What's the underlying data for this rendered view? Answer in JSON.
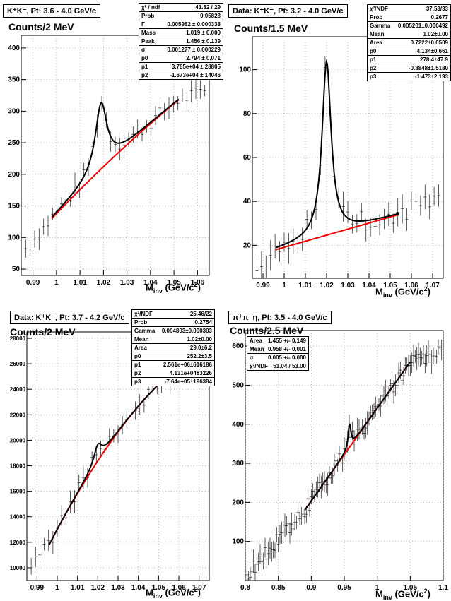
{
  "chart_data": [
    {
      "type": "scatter",
      "title": "K⁺K⁻, Pt: 3.6 - 4.0 GeV/c",
      "ylabel": "Counts/2 MeV",
      "xlabel": "M_inv (GeV/c²)",
      "xlim": [
        0.985,
        1.065
      ],
      "ylim": [
        40,
        420
      ],
      "xticks": [
        "0.99",
        "1",
        "1.01",
        "1.02",
        "1.03",
        "1.04",
        "1.05",
        "1.06"
      ],
      "yticks": [
        "50",
        "100",
        "150",
        "200",
        "250",
        "300",
        "350",
        "400"
      ],
      "peak": {
        "mass": 1.019,
        "width": 0.006,
        "height": 105
      },
      "background": {
        "x0": 0.998,
        "y0": 130,
        "x1": 1.052,
        "y1": 318
      },
      "fit_range": [
        0.998,
        1.052
      ],
      "stats": [
        {
          "k": "χ² / ndf",
          "v": "41.82 / 29"
        },
        {
          "k": "Prob",
          "v": "0.05828"
        },
        {
          "k": "Γ",
          "v": "0.005982 ± 0.000338"
        },
        {
          "k": "Mass",
          "v": "1.019 ± 0.000"
        },
        {
          "k": "Peak",
          "v": "1.456 ± 0.139"
        },
        {
          "k": "σ",
          "v": "0.001277 ± 0.000229"
        },
        {
          "k": "p0",
          "v": "2.794 ± 0.071"
        },
        {
          "k": "p1",
          "v": "3.785e+04 ± 28805"
        },
        {
          "k": "p2",
          "v": "-1.673e+04 ± 14046"
        }
      ]
    },
    {
      "type": "scatter",
      "title": "Data: K⁺K⁻, Pt: 3.2 - 4.0 GeV/c",
      "ylabel": "Counts/1.5 MeV",
      "xlabel": "M_inv (GeV/c²)",
      "xlim": [
        0.985,
        1.075
      ],
      "ylim": [
        5,
        115
      ],
      "xticks": [
        "0.99",
        "1",
        "1.01",
        "1.02",
        "1.03",
        "1.04",
        "1.05",
        "1.06",
        "1.07"
      ],
      "yticks": [
        "20",
        "40",
        "60",
        "80",
        "100"
      ],
      "peak": {
        "mass": 1.02,
        "width": 0.0052,
        "height": 79
      },
      "background": {
        "x0": 0.996,
        "y0": 18,
        "x1": 1.054,
        "y1": 34
      },
      "fit_range": [
        0.996,
        1.054
      ],
      "stats": [
        {
          "k": "χ²/NDF",
          "v": "37.53/33"
        },
        {
          "k": "Prob",
          "v": "0.2677"
        },
        {
          "k": "Gamma",
          "v": "0.005201±0.000492"
        },
        {
          "k": "Mean",
          "v": "1.02±0.00"
        },
        {
          "k": "Area",
          "v": "0.7222±0.0509"
        },
        {
          "k": "p0",
          "v": "4.134±0.661"
        },
        {
          "k": "p1",
          "v": "278.4±47.9"
        },
        {
          "k": "p2",
          "v": "-0.8848±1.5180"
        },
        {
          "k": "p3",
          "v": "-1.473±2.193"
        }
      ]
    },
    {
      "type": "scatter",
      "title": "Data: K⁺K⁻, Pt: 3.7 - 4.2 GeV/c",
      "ylabel": "Counts/2 MeV",
      "xlabel": "M_inv (GeV/c²)",
      "xlim": [
        0.985,
        1.075
      ],
      "ylim": [
        9000,
        28500
      ],
      "xticks": [
        "0.99",
        "1",
        "1.01",
        "1.02",
        "1.03",
        "1.04",
        "1.05",
        "1.06",
        "1.07"
      ],
      "yticks": [
        "10000",
        "12000",
        "14000",
        "16000",
        "18000",
        "20000",
        "22000",
        "24000",
        "26000",
        "28000"
      ],
      "peak": {
        "mass": 1.02,
        "width": 0.0048,
        "height": 1300
      },
      "background": {
        "x0": 0.996,
        "y0": 11800,
        "x1": 1.054,
        "y1": 25000
      },
      "fit_range": [
        0.996,
        1.054
      ],
      "stats": [
        {
          "k": "χ²/NDF",
          "v": "25.46/22"
        },
        {
          "k": "Prob",
          "v": "0.2754"
        },
        {
          "k": "Gamma",
          "v": "0.004803±0.000303"
        },
        {
          "k": "Mean",
          "v": "1.02±0.00"
        },
        {
          "k": "Area",
          "v": "29.0±6.2"
        },
        {
          "k": "p0",
          "v": "252.2±3.5"
        },
        {
          "k": "p1",
          "v": "2.561e+06±616186"
        },
        {
          "k": "p2",
          "v": "4.131e+04±3226"
        },
        {
          "k": "p3",
          "v": "-7.64e+05±196384"
        }
      ]
    },
    {
      "type": "scatter",
      "title": "π⁺π⁻η, Pt: 3.5 - 4.0 GeV/c",
      "ylabel": "Counts/2.5 MeV",
      "xlabel": "M_inv (GeV/c²)",
      "xlim": [
        0.8,
        1.1
      ],
      "ylim": [
        0,
        640
      ],
      "xticks": [
        "0.8",
        "0.85",
        "0.9",
        "0.95",
        "1",
        "1.05",
        "1.1"
      ],
      "yticks": [
        "100",
        "200",
        "300",
        "400",
        "500",
        "600"
      ],
      "peak": {
        "mass": 0.958,
        "width": 0.005,
        "height": 60
      },
      "background": {
        "x0": 0.89,
        "y0": 180,
        "x1": 1.05,
        "y1": 560
      },
      "fit_range": [
        0.89,
        1.05
      ],
      "stats": [
        {
          "k": "Area",
          "v": "1.455 +/- 0.149"
        },
        {
          "k": "Mean",
          "v": "0.958 +/- 0.001"
        },
        {
          "k": "σ",
          "v": "0.005 +/- 0.000"
        },
        {
          "k": "χ²/NDF",
          "v": "51.04 / 53.00"
        }
      ]
    }
  ]
}
